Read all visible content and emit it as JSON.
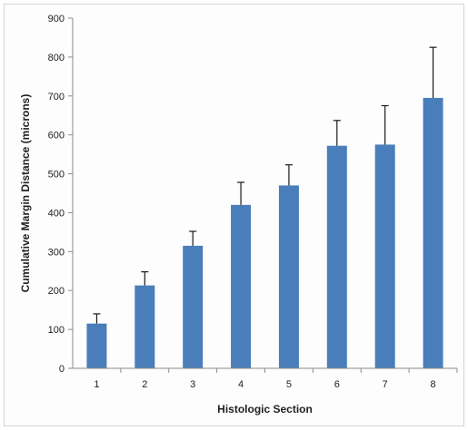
{
  "chart_data": {
    "type": "bar",
    "categories": [
      "1",
      "2",
      "3",
      "4",
      "5",
      "6",
      "7",
      "8"
    ],
    "values": [
      115,
      213,
      315,
      420,
      470,
      572,
      575,
      695
    ],
    "error_bars_upper": [
      25,
      35,
      37,
      58,
      53,
      65,
      100,
      130
    ],
    "xlabel": "Histologic Section",
    "ylabel": "Cumulative Margin Distance (microns)",
    "ylim": [
      0,
      900
    ],
    "yticks": [
      "0",
      "100",
      "200",
      "300",
      "400",
      "500",
      "600",
      "700",
      "800",
      "900"
    ],
    "grid": false,
    "legend": "none",
    "colors": {
      "bar": "#4a7ebb",
      "error_bar": "#1a1a1a",
      "axis": "#8c8c8c"
    }
  }
}
